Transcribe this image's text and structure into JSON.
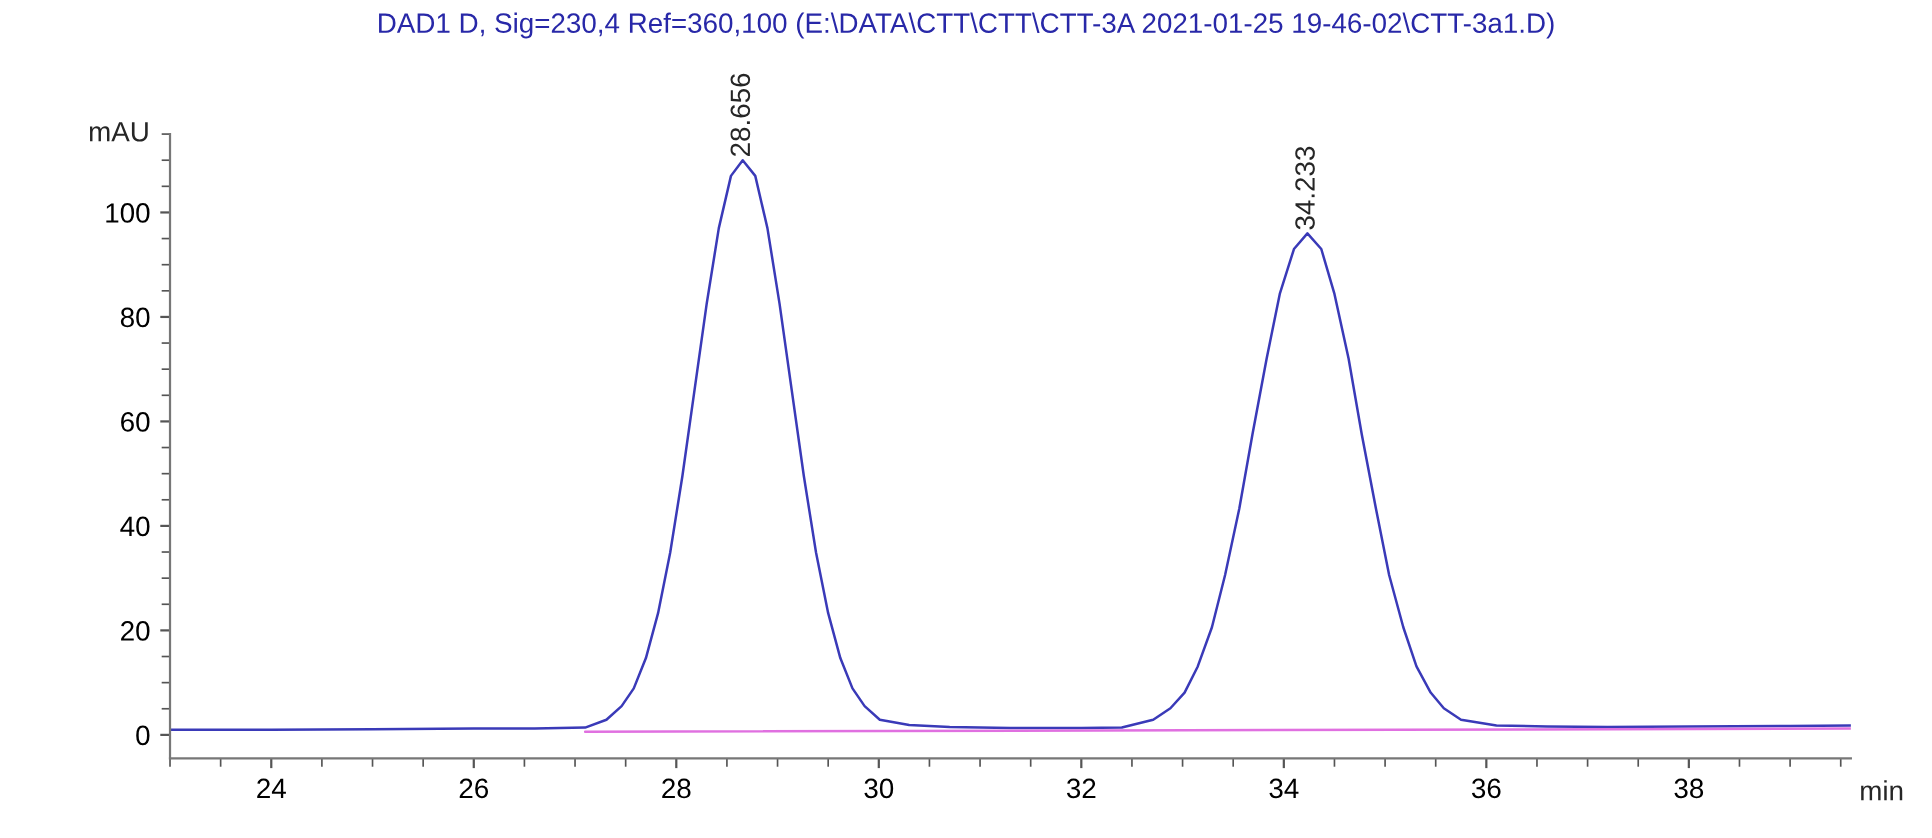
{
  "chart_data": {
    "type": "line",
    "title": "DAD1 D, Sig=230,4 Ref=360,100 (E:\\DATA\\CTT\\CTT\\CTT-3A 2021-01-25 19-46-02\\CTT-3a1.D)",
    "xlabel": "min",
    "ylabel": "mAU",
    "series": [
      {
        "color": "#3a3ab8",
        "x": [
          23.0,
          24.0,
          25.0,
          26.0,
          26.6,
          27.1,
          27.31,
          27.46,
          27.58,
          27.7,
          27.82,
          27.94,
          28.06,
          28.18,
          28.3,
          28.42,
          28.54,
          28.656,
          28.78,
          28.9,
          29.02,
          29.14,
          29.26,
          29.38,
          29.5,
          29.62,
          29.74,
          29.86,
          30.01,
          30.3,
          30.7,
          31.3,
          32.0,
          32.4,
          32.71,
          32.88,
          33.02,
          33.15,
          33.29,
          33.42,
          33.56,
          33.69,
          33.83,
          33.96,
          34.1,
          34.233,
          34.37,
          34.5,
          34.64,
          34.77,
          34.91,
          35.04,
          35.18,
          35.31,
          35.45,
          35.58,
          35.75,
          36.1,
          36.6,
          37.2,
          38.0,
          39.0,
          39.6
        ],
        "values": [
          1.0,
          1.0,
          1.1,
          1.2,
          1.2,
          1.4,
          2.9,
          5.5,
          8.9,
          14.7,
          23.3,
          34.9,
          49.5,
          66,
          82.5,
          97,
          107,
          110,
          107,
          97,
          82.5,
          66,
          49.5,
          34.9,
          23.3,
          14.7,
          8.9,
          5.5,
          2.9,
          1.9,
          1.5,
          1.3,
          1.3,
          1.4,
          2.9,
          5.1,
          8.1,
          13.1,
          20.6,
          30.6,
          43.3,
          57.5,
          72,
          84.4,
          93,
          96,
          93,
          84.4,
          72,
          57.5,
          43.3,
          30.6,
          20.6,
          13.1,
          8.1,
          5.1,
          2.9,
          1.8,
          1.6,
          1.5,
          1.6,
          1.7,
          1.8
        ]
      },
      {
        "color": "#e070e0",
        "x": [
          27.1,
          39.6
        ],
        "values": [
          0.6,
          1.2
        ]
      }
    ],
    "xlim": [
      23.0,
      39.6
    ],
    "ylim": [
      -4.5,
      115
    ],
    "xticks": [
      24,
      26,
      28,
      30,
      32,
      34,
      36,
      38
    ],
    "yticks": [
      0,
      20,
      40,
      60,
      80,
      100
    ],
    "annotations": [
      {
        "text": "28.656",
        "x": 28.656,
        "y": 110
      },
      {
        "text": "34.233",
        "x": 34.233,
        "y": 96
      }
    ],
    "grid": false,
    "legend": false
  }
}
